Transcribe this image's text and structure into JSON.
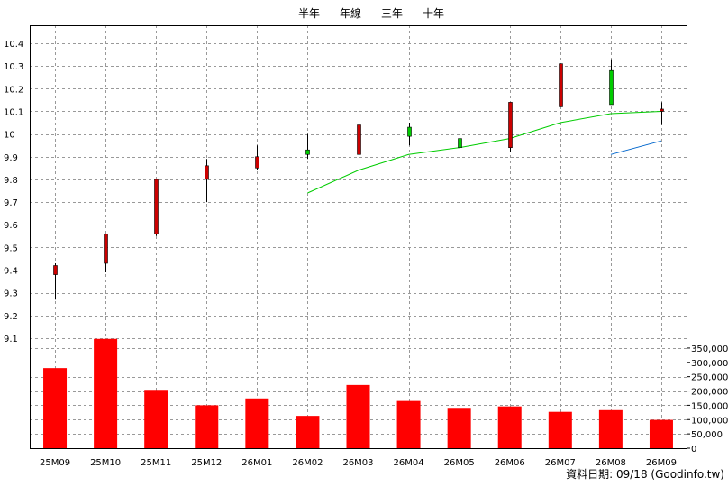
{
  "legend": [
    {
      "label": "半年",
      "color": "#00cc00"
    },
    {
      "label": "年線",
      "color": "#0066cc"
    },
    {
      "label": "三年",
      "color": "#cc0000"
    },
    {
      "label": "十年",
      "color": "#3300cc"
    }
  ],
  "footer": "資料日期: 09/18  (Goodinfo.tw)",
  "chart_data": {
    "type": "candlestick",
    "categories": [
      "25M09",
      "25M10",
      "25M11",
      "25M12",
      "26M01",
      "26M02",
      "26M03",
      "26M04",
      "26M05",
      "26M06",
      "26M07",
      "26M08",
      "26M09"
    ],
    "price_axis": {
      "ylim": [
        9.1,
        10.4
      ],
      "ticks": [
        "9.1",
        "9.2",
        "9.3",
        "9.4",
        "9.5",
        "9.6",
        "9.7",
        "9.8",
        "9.9",
        "10",
        "10.1",
        "10.2",
        "10.3",
        "10.4"
      ]
    },
    "volume_axis": {
      "ylim": [
        0,
        375000
      ],
      "ticks": [
        "0",
        "50,000",
        "100,000",
        "150,000",
        "200,000",
        "250,000",
        "300,000",
        "350,000"
      ]
    },
    "grid": true,
    "legend_position": "top",
    "up_color": "#00cc00",
    "down_color": "#cc0000",
    "candles": [
      {
        "open": 9.42,
        "high": 9.43,
        "low": 9.27,
        "close": 9.38
      },
      {
        "open": 9.56,
        "high": 9.56,
        "low": 9.39,
        "close": 9.43
      },
      {
        "open": 9.8,
        "high": 9.8,
        "low": 9.55,
        "close": 9.56
      },
      {
        "open": 9.86,
        "high": 9.89,
        "low": 9.7,
        "close": 9.8
      },
      {
        "open": 9.9,
        "high": 9.95,
        "low": 9.84,
        "close": 9.85
      },
      {
        "open": 9.91,
        "high": 10.0,
        "low": 9.89,
        "close": 9.93
      },
      {
        "open": 10.04,
        "high": 10.05,
        "low": 9.9,
        "close": 9.91
      },
      {
        "open": 9.99,
        "high": 10.05,
        "low": 9.95,
        "close": 10.03
      },
      {
        "open": 9.94,
        "high": 9.99,
        "low": 9.9,
        "close": 9.98
      },
      {
        "open": 10.14,
        "high": 10.14,
        "low": 9.92,
        "close": 9.94
      },
      {
        "open": 10.31,
        "high": 10.31,
        "low": 10.12,
        "close": 10.12
      },
      {
        "open": 10.13,
        "high": 10.33,
        "low": 10.13,
        "close": 10.28
      },
      {
        "open": 10.11,
        "high": 10.14,
        "low": 10.04,
        "close": 10.1
      }
    ],
    "series": [
      {
        "name": "半年",
        "color": "#00cc00",
        "values": [
          null,
          null,
          null,
          null,
          null,
          9.74,
          9.84,
          9.91,
          9.94,
          9.98,
          10.05,
          10.09,
          10.1
        ]
      },
      {
        "name": "年線",
        "color": "#0066cc",
        "values": [
          null,
          null,
          null,
          null,
          null,
          null,
          null,
          null,
          null,
          null,
          null,
          9.91,
          9.97
        ]
      }
    ],
    "volume": {
      "color": "#ff0000",
      "values": [
        280000,
        382000,
        204000,
        150000,
        174000,
        113000,
        221000,
        165000,
        141000,
        146000,
        127000,
        133000,
        99000
      ]
    }
  }
}
